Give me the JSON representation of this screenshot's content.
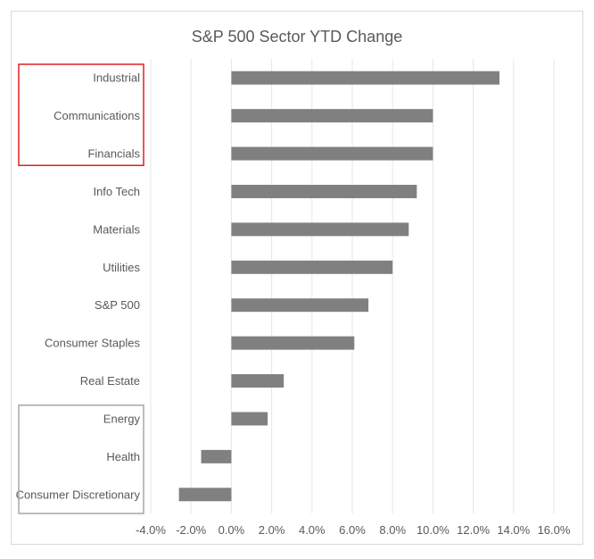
{
  "chart_data": {
    "type": "bar",
    "orientation": "horizontal",
    "title": "S&P 500 Sector YTD Change",
    "categories": [
      "Industrial",
      "Communications",
      "Financials",
      "Info Tech",
      "Materials",
      "Utilities",
      "S&P 500",
      "Consumer Staples",
      "Real Estate",
      "Energy",
      "Health",
      "Consumer Discretionary"
    ],
    "values": [
      13.3,
      10.0,
      10.0,
      9.2,
      8.8,
      8.0,
      6.8,
      6.1,
      2.6,
      1.8,
      -1.5,
      -2.6
    ],
    "value_format": "percent",
    "xlim": [
      -4,
      16
    ],
    "xticks": [
      -4,
      -2,
      0,
      2,
      4,
      6,
      8,
      10,
      12,
      14,
      16
    ],
    "xtick_labels": [
      "-4.0%",
      "-2.0%",
      "0.0%",
      "2.0%",
      "4.0%",
      "6.0%",
      "8.0%",
      "10.0%",
      "12.0%",
      "14.0%",
      "16.0%"
    ],
    "grid": "vertical",
    "bar_color": "#808080",
    "highlights": [
      {
        "categories": [
          "Industrial",
          "Communications",
          "Financials"
        ],
        "color": "#e02020"
      },
      {
        "categories": [
          "Energy",
          "Health",
          "Consumer Discretionary"
        ],
        "color": "#a6a6a6"
      }
    ]
  }
}
